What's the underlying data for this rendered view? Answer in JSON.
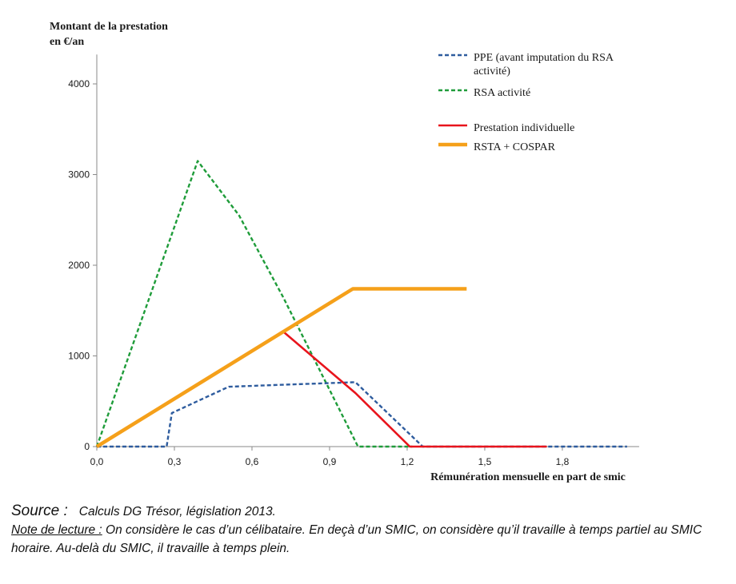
{
  "chart_data": {
    "type": "line",
    "ylabel": "Montant de la prestation en €/an",
    "xlabel": "Rémunération mensuelle en part de smic",
    "xlim": [
      0,
      2.1
    ],
    "ylim": [
      0,
      4500
    ],
    "x_ticks": [
      "0,0",
      "0,3",
      "0,6",
      "0,9",
      "1,2",
      "1,5",
      "1,8"
    ],
    "x_tick_values": [
      0,
      0.3,
      0.6,
      0.9,
      1.2,
      1.5,
      1.8
    ],
    "y_ticks": [
      "0",
      "1000",
      "2000",
      "3000",
      "4000"
    ],
    "y_tick_values": [
      0,
      1000,
      2000,
      3000,
      4000
    ],
    "grid": false,
    "legend_position": "top-right",
    "series": [
      {
        "name": "PPE (avant imputation du RSA activité)",
        "color": "#2e5c9e",
        "style": "dashed",
        "points": [
          [
            0,
            0
          ],
          [
            0.27,
            0
          ],
          [
            0.29,
            370
          ],
          [
            0.51,
            660
          ],
          [
            0.7,
            680
          ],
          [
            1.0,
            710
          ],
          [
            1.26,
            0
          ],
          [
            2.05,
            0
          ]
        ]
      },
      {
        "name": "RSA activité",
        "color": "#1f9c3a",
        "style": "dashed",
        "points": [
          [
            0,
            0
          ],
          [
            0.39,
            3150
          ],
          [
            0.55,
            2550
          ],
          [
            0.72,
            1650
          ],
          [
            1.01,
            0
          ],
          [
            1.22,
            0
          ]
        ]
      },
      {
        "name": "Prestation individuelle",
        "color": "#e8141c",
        "style": "solid",
        "points": [
          [
            0,
            0
          ],
          [
            0.72,
            1270
          ],
          [
            1.0,
            590
          ],
          [
            1.21,
            0
          ],
          [
            1.74,
            0
          ]
        ]
      },
      {
        "name": "RSTA + COSPAR",
        "color": "#f5a01a",
        "style": "solid-thick",
        "points": [
          [
            0,
            0
          ],
          [
            0.99,
            1740
          ],
          [
            1.43,
            1740
          ]
        ]
      }
    ]
  },
  "notes": {
    "source_label": "Source :",
    "source_text": "Calculs DG Trésor, législation 2013.",
    "note_label": "Note de lecture :",
    "note_text": " On considère le cas d’un célibataire. En deçà d’un SMIC, on considère qu’il travaille à temps partiel au SMIC horaire. Au-delà du SMIC, il travaille à temps plein."
  }
}
